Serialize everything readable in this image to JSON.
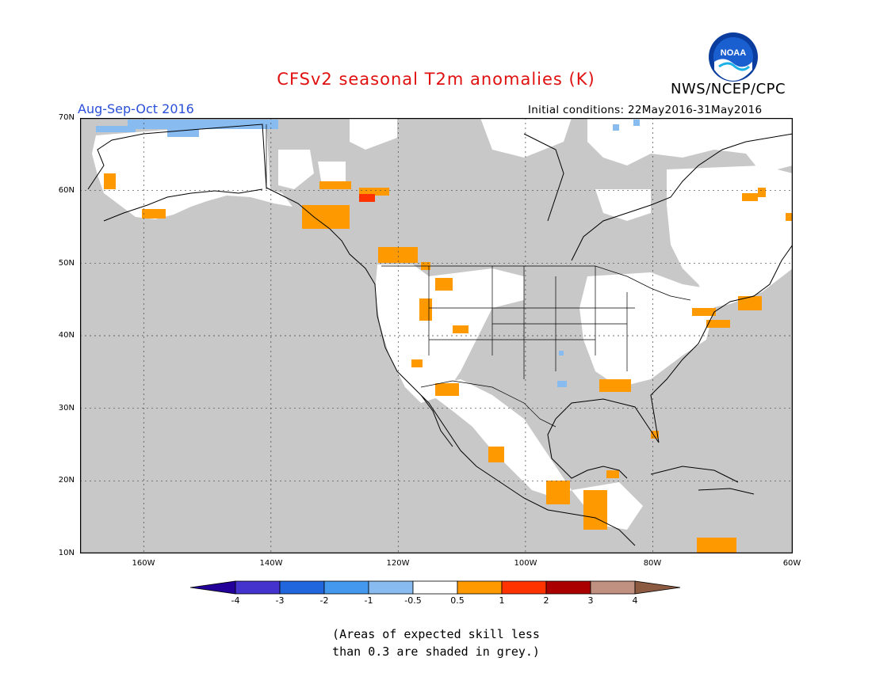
{
  "header": {
    "title": "CFSv2 seasonal T2m anomalies (K)",
    "agency": "NWS/NCEP/CPC",
    "logo_text": "NOAA",
    "season": "Aug-Sep-Oct 2016",
    "initial_conditions": "Initial conditions: 22May2016-31May2016"
  },
  "map": {
    "region": "North America",
    "projection": "lat-lon",
    "lon_range": [
      -172,
      -60
    ],
    "lat_range": [
      10,
      70
    ],
    "lat_ticks": [
      "10N",
      "20N",
      "30N",
      "40N",
      "50N",
      "60N",
      "70N"
    ],
    "lon_ticks": [
      "160W",
      "140W",
      "120W",
      "100W",
      "80W",
      "60W"
    ],
    "grey_meaning": "skill < 0.3"
  },
  "colorbar": {
    "tick_labels": [
      "-4",
      "-3",
      "-2",
      "-1",
      "-0.5",
      "0.5",
      "1",
      "2",
      "3",
      "4"
    ],
    "colors": [
      "#220099",
      "#4433cc",
      "#2266dd",
      "#4499ee",
      "#88bbf0",
      "#ffffff",
      "#ff9900",
      "#ff3300",
      "#aa0000",
      "#c09080",
      "#8b5a40"
    ]
  },
  "footnote": {
    "line1": "(Areas of expected skill less",
    "line2": "than 0.3 are shaded in grey.)"
  }
}
